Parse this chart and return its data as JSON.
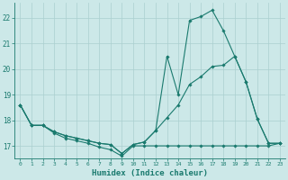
{
  "xlabel": "Humidex (Indice chaleur)",
  "background_color": "#cce8e8",
  "grid_color": "#aacfcf",
  "line_color": "#1a7a6e",
  "xlim": [
    -0.5,
    23.5
  ],
  "ylim": [
    16.5,
    22.6
  ],
  "yticks": [
    17,
    18,
    19,
    20,
    21,
    22
  ],
  "xticks": [
    0,
    1,
    2,
    3,
    4,
    5,
    6,
    7,
    8,
    9,
    10,
    11,
    12,
    13,
    14,
    15,
    16,
    17,
    18,
    19,
    20,
    21,
    22,
    23
  ],
  "line1_x": [
    0,
    1,
    2,
    3,
    4,
    5,
    6,
    7,
    8,
    9,
    10,
    11,
    12,
    13,
    14,
    15,
    16,
    17,
    18,
    19,
    20,
    21,
    22,
    23
  ],
  "line1_y": [
    18.6,
    17.8,
    17.8,
    17.5,
    17.3,
    17.2,
    17.1,
    16.95,
    16.85,
    16.6,
    17.0,
    17.0,
    17.0,
    17.0,
    17.0,
    17.0,
    17.0,
    17.0,
    17.0,
    17.0,
    17.0,
    17.0,
    17.0,
    17.1
  ],
  "line2_x": [
    0,
    1,
    2,
    3,
    4,
    5,
    6,
    7,
    8,
    9,
    10,
    11,
    12,
    13,
    14,
    15,
    16,
    17,
    18,
    19,
    20,
    21,
    22,
    23
  ],
  "line2_y": [
    18.6,
    17.8,
    17.8,
    17.55,
    17.4,
    17.3,
    17.2,
    17.1,
    17.05,
    16.7,
    17.05,
    17.15,
    17.6,
    18.1,
    18.6,
    19.4,
    19.7,
    20.1,
    20.15,
    20.5,
    19.5,
    18.05,
    17.1,
    17.1
  ],
  "line3_x": [
    0,
    1,
    2,
    3,
    4,
    5,
    6,
    7,
    8,
    9,
    10,
    11,
    12,
    13,
    14,
    15,
    16,
    17,
    18,
    19,
    20,
    21,
    22,
    23
  ],
  "line3_y": [
    18.6,
    17.8,
    17.8,
    17.55,
    17.4,
    17.3,
    17.2,
    17.1,
    17.05,
    16.7,
    17.05,
    17.15,
    17.6,
    20.5,
    19.0,
    21.9,
    22.05,
    22.3,
    21.5,
    20.5,
    19.5,
    18.05,
    17.1,
    17.1
  ]
}
